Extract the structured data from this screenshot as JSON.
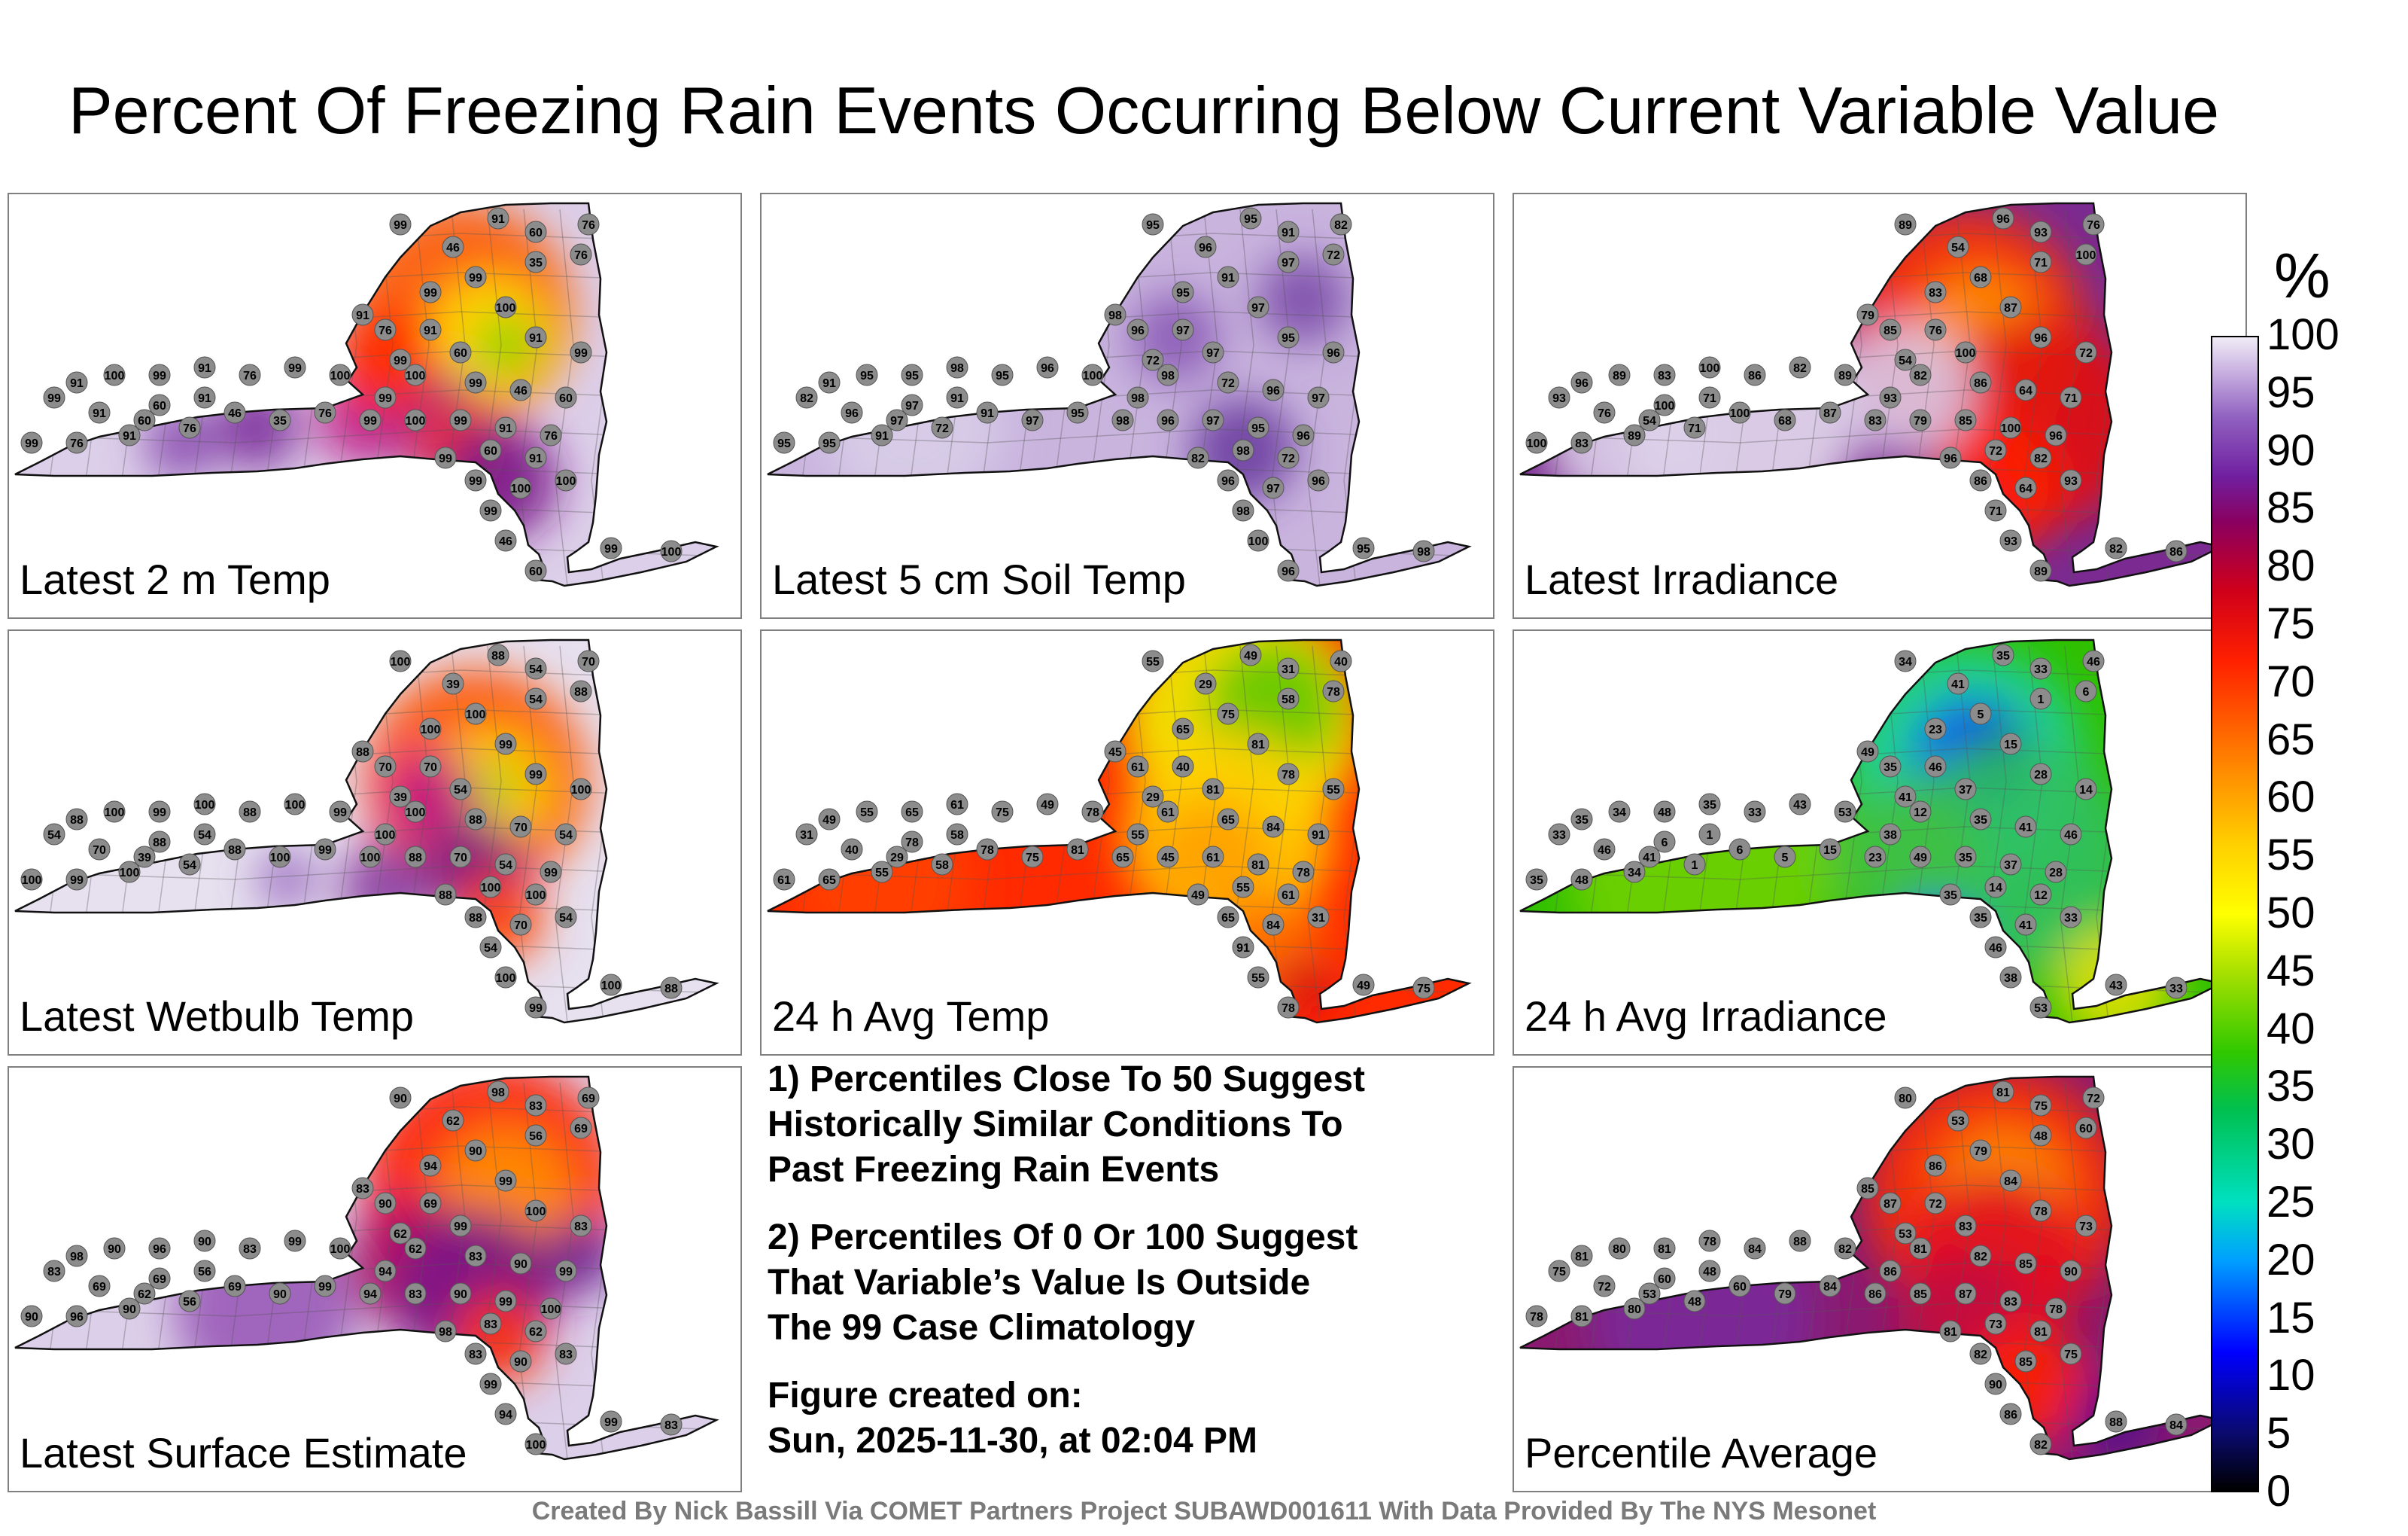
{
  "title": "Percent Of Freezing Rain Events Occurring Below Current Variable Value",
  "panels": [
    {
      "label": "Latest 2 m Temp",
      "scheme": "temp",
      "samples": [
        99,
        91,
        60,
        76,
        46,
        35,
        76,
        99,
        100,
        99,
        91,
        76,
        60,
        91,
        99,
        100,
        99,
        46,
        60,
        99,
        100,
        99,
        76,
        91,
        99,
        100,
        91
      ]
    },
    {
      "label": "Latest 5 cm Soil Temp",
      "scheme": "soil",
      "samples": [
        95,
        95,
        91,
        82,
        96,
        97,
        72,
        91,
        97,
        95,
        98,
        96,
        97,
        95,
        96,
        98,
        72,
        96,
        97,
        98,
        100,
        96,
        95,
        98
      ]
    },
    {
      "label": "Latest Irradiance",
      "scheme": "irr",
      "samples": [
        89,
        96,
        93,
        76,
        54,
        71,
        100,
        68,
        87,
        83,
        79,
        85,
        100,
        96,
        72,
        82,
        86,
        64,
        71,
        93,
        89,
        82,
        86,
        100,
        83
      ]
    },
    {
      "label": "Latest Wetbulb Temp",
      "scheme": "wet",
      "samples": [
        100,
        88,
        54,
        70,
        39,
        54,
        88,
        100,
        99,
        100,
        88,
        70,
        54,
        99,
        100,
        100,
        88,
        70,
        54,
        100,
        99,
        100,
        88,
        100,
        99
      ]
    },
    {
      "label": "24 h Avg Temp",
      "scheme": "avgt",
      "samples": [
        55,
        49,
        31,
        40,
        29,
        58,
        78,
        75,
        81,
        65,
        45,
        61,
        81,
        78,
        55,
        61,
        65,
        84,
        91,
        55,
        78,
        49,
        75,
        61,
        65
      ]
    },
    {
      "label": "24 h Avg Irradiance",
      "scheme": "avgi",
      "samples": [
        34,
        35,
        33,
        46,
        41,
        1,
        6,
        5,
        15,
        23,
        49,
        35,
        37,
        28,
        14,
        12,
        35,
        41,
        46,
        38,
        53,
        43,
        33,
        35,
        48
      ]
    },
    {
      "label": "Latest Surface Estimate",
      "scheme": "surf",
      "samples": [
        90,
        98,
        83,
        69,
        62,
        56,
        69,
        90,
        99,
        94,
        83,
        90,
        99,
        100,
        83,
        62,
        83,
        90,
        99,
        94,
        100,
        99,
        83,
        90,
        96
      ]
    },
    {
      "label": "Percentile Average",
      "scheme": "avg",
      "samples": [
        80,
        81,
        75,
        72,
        53,
        48,
        60,
        79,
        84,
        86,
        85,
        87,
        83,
        78,
        73,
        81,
        82,
        85,
        90,
        86,
        82,
        88,
        84,
        78,
        81
      ]
    }
  ],
  "notes": {
    "note1_line1": "1) Percentiles Close To 50 Suggest",
    "note1_line2": "Historically Similar Conditions To",
    "note1_line3": "Past Freezing Rain Events",
    "note2_line1": "2) Percentiles Of 0 Or 100 Suggest",
    "note2_line2": "That Variable’s Value Is Outside",
    "note2_line3": "The 99 Case Climatology",
    "created_label": "Figure created on:",
    "created_value": "Sun, 2025-11-30, at 02:04 PM"
  },
  "colorbar": {
    "unit": "%",
    "ticks": [
      "100",
      "95",
      "90",
      "85",
      "80",
      "75",
      "70",
      "65",
      "60",
      "55",
      "50",
      "45",
      "40",
      "35",
      "30",
      "25",
      "20",
      "15",
      "10",
      "5",
      "0"
    ]
  },
  "credit": "Created By Nick Bassill Via COMET Partners Project SUBAWD001611 With Data Provided By The NYS Mesonet"
}
